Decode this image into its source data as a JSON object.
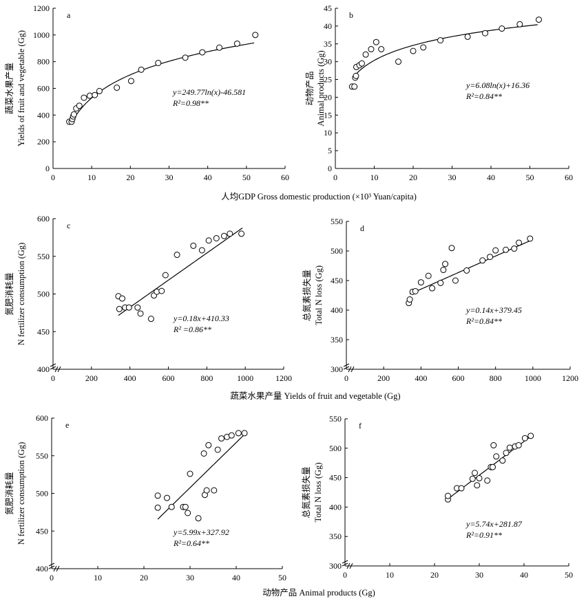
{
  "figure": {
    "row_xlabels": [
      "人均GDP Gross domestic production (×10³ Yuan/capita)",
      "蔬菜水果产量 Yields of fruit and vegetable (Gg)",
      "动物产品 Animal products (Gg)"
    ]
  },
  "chart_data": [
    {
      "panel": "a",
      "type": "scatter",
      "ylabel_cn": "蔬菜水果产量",
      "ylabel_en": "Yields of fruit and vegetable (Gg)",
      "xlim": [
        0,
        60
      ],
      "ylim": [
        0,
        1200
      ],
      "xticks": [
        0,
        10,
        20,
        30,
        40,
        50,
        60
      ],
      "yticks": [
        0,
        200,
        400,
        600,
        800,
        1000,
        1200
      ],
      "points": [
        [
          4.2,
          350
        ],
        [
          4.8,
          350
        ],
        [
          5.0,
          370
        ],
        [
          5.2,
          390
        ],
        [
          5.4,
          405
        ],
        [
          6.0,
          450
        ],
        [
          6.8,
          470
        ],
        [
          8.0,
          530
        ],
        [
          9.5,
          545
        ],
        [
          10.8,
          550
        ],
        [
          12.0,
          580
        ],
        [
          16.5,
          605
        ],
        [
          20.2,
          655
        ],
        [
          22.8,
          740
        ],
        [
          27.2,
          790
        ],
        [
          34.2,
          830
        ],
        [
          38.6,
          870
        ],
        [
          43.0,
          905
        ],
        [
          47.6,
          935
        ],
        [
          52.3,
          1000
        ]
      ],
      "fit": {
        "model": "log",
        "a": 249.77,
        "b": -46.581,
        "xrange": [
          5,
          52
        ]
      },
      "equation": "y=249.77ln(x)-46.581",
      "r2": "R²=0.98**"
    },
    {
      "panel": "b",
      "type": "scatter",
      "ylabel_cn": "动物产品",
      "ylabel_en": "Animal products (Gg)",
      "xlim": [
        0,
        60
      ],
      "ylim": [
        0,
        45
      ],
      "xticks": [
        0,
        10,
        20,
        30,
        40,
        50,
        60
      ],
      "yticks": [
        0,
        5,
        10,
        15,
        20,
        25,
        30,
        35,
        40,
        45
      ],
      "points": [
        [
          4.3,
          23
        ],
        [
          4.9,
          23
        ],
        [
          5.1,
          25.5
        ],
        [
          5.3,
          26
        ],
        [
          5.4,
          28.5
        ],
        [
          6.2,
          29
        ],
        [
          6.8,
          29.5
        ],
        [
          7.8,
          32
        ],
        [
          9.2,
          33.5
        ],
        [
          10.5,
          35.5
        ],
        [
          11.8,
          33.5
        ],
        [
          16.2,
          30
        ],
        [
          20.0,
          33
        ],
        [
          22.6,
          34
        ],
        [
          27.0,
          36
        ],
        [
          34.0,
          37
        ],
        [
          38.5,
          38
        ],
        [
          42.8,
          39.3
        ],
        [
          47.4,
          40.5
        ],
        [
          52.3,
          41.8
        ]
      ],
      "fit": {
        "model": "log",
        "a": 6.08,
        "b": 16.36,
        "xrange": [
          5,
          52
        ]
      },
      "equation": "y=6.08ln(x)+16.36",
      "r2": "R²=0.84**"
    },
    {
      "panel": "c",
      "type": "scatter",
      "ylabel_cn": "氮肥消耗量",
      "ylabel_en": "N fertilizer consumption (Gg)",
      "xlim": [
        0,
        1200
      ],
      "ylim": [
        400,
        600
      ],
      "xticks": [
        0,
        200,
        400,
        600,
        800,
        1000,
        1200
      ],
      "yticks": [
        400,
        450,
        500,
        550,
        600
      ],
      "points": [
        [
          340,
          497
        ],
        [
          345,
          480
        ],
        [
          360,
          494
        ],
        [
          375,
          482
        ],
        [
          395,
          482
        ],
        [
          440,
          482
        ],
        [
          455,
          474
        ],
        [
          510,
          467
        ],
        [
          525,
          498
        ],
        [
          540,
          503
        ],
        [
          565,
          504
        ],
        [
          585,
          525
        ],
        [
          645,
          552
        ],
        [
          730,
          564
        ],
        [
          775,
          558
        ],
        [
          810,
          571
        ],
        [
          850,
          574
        ],
        [
          890,
          577
        ],
        [
          920,
          580
        ],
        [
          980,
          580
        ]
      ],
      "fit": {
        "model": "linear",
        "a": 0.18,
        "b": 410.33,
        "xrange": [
          340,
          985
        ]
      },
      "equation": "y=0.18x+410.33",
      "r2": "R² =0.86**"
    },
    {
      "panel": "d",
      "type": "scatter",
      "ylabel_cn": "总氮素损失量",
      "ylabel_en": "Total N loss (Gg)",
      "xlim": [
        0,
        1200
      ],
      "ylim": [
        300,
        550
      ],
      "xticks": [
        0,
        200,
        400,
        600,
        800,
        1000,
        1200
      ],
      "yticks": [
        300,
        350,
        400,
        450,
        500,
        550
      ],
      "points": [
        [
          335,
          412
        ],
        [
          340,
          418
        ],
        [
          355,
          431
        ],
        [
          370,
          432
        ],
        [
          400,
          447
        ],
        [
          440,
          458
        ],
        [
          460,
          437
        ],
        [
          505,
          446
        ],
        [
          520,
          468
        ],
        [
          530,
          478
        ],
        [
          565,
          505
        ],
        [
          585,
          450
        ],
        [
          645,
          467
        ],
        [
          730,
          484
        ],
        [
          770,
          490
        ],
        [
          800,
          501
        ],
        [
          855,
          502
        ],
        [
          900,
          504
        ],
        [
          925,
          514
        ],
        [
          985,
          521
        ]
      ],
      "fit": {
        "model": "linear",
        "a": 0.14,
        "b": 379.45,
        "xrange": [
          340,
          985
        ]
      },
      "equation": "y=0.14x+379.45",
      "r2": "R²=0.84**"
    },
    {
      "panel": "e",
      "type": "scatter",
      "ylabel_cn": "氮肥消耗量",
      "ylabel_en": "N fertilizer consumption (Gg)",
      "xlim": [
        0,
        50
      ],
      "ylim": [
        400,
        600
      ],
      "xticks": [
        0,
        10,
        20,
        30,
        40,
        50
      ],
      "yticks": [
        400,
        450,
        500,
        550,
        600
      ],
      "points": [
        [
          23,
          497
        ],
        [
          23,
          481
        ],
        [
          25,
          494
        ],
        [
          26,
          482
        ],
        [
          28.5,
          482
        ],
        [
          29,
          482
        ],
        [
          29.5,
          474
        ],
        [
          30,
          526
        ],
        [
          31.8,
          467
        ],
        [
          33,
          553
        ],
        [
          33.2,
          498
        ],
        [
          33.6,
          504
        ],
        [
          34,
          564
        ],
        [
          35.2,
          504
        ],
        [
          36,
          558
        ],
        [
          36.8,
          573
        ],
        [
          38,
          575
        ],
        [
          39,
          577
        ],
        [
          40.5,
          580
        ],
        [
          41.8,
          580
        ]
      ],
      "fit": {
        "model": "linear",
        "a": 5.99,
        "b": 327.92,
        "xrange": [
          23,
          42
        ]
      },
      "equation": "y=5.99x+327.92",
      "r2": "R²=0.64**"
    },
    {
      "panel": "f",
      "type": "scatter",
      "ylabel_cn": "总氮素损失量",
      "ylabel_en": "Total N loss (Gg)",
      "xlim": [
        0,
        50
      ],
      "ylim": [
        300,
        550
      ],
      "xticks": [
        0,
        10,
        20,
        30,
        40,
        50
      ],
      "yticks": [
        300,
        350,
        400,
        450,
        500,
        550
      ],
      "points": [
        [
          23,
          413
        ],
        [
          23,
          419
        ],
        [
          25,
          432
        ],
        [
          26,
          432
        ],
        [
          28.5,
          448
        ],
        [
          29,
          458
        ],
        [
          29.5,
          437
        ],
        [
          30,
          449
        ],
        [
          31.8,
          445
        ],
        [
          32.6,
          468
        ],
        [
          33,
          468
        ],
        [
          33.2,
          505
        ],
        [
          33.8,
          486
        ],
        [
          35.2,
          479
        ],
        [
          36,
          492
        ],
        [
          36.8,
          501
        ],
        [
          38,
          503
        ],
        [
          38.8,
          505
        ],
        [
          40.2,
          517
        ],
        [
          41.5,
          521
        ]
      ],
      "fit": {
        "model": "linear",
        "a": 5.74,
        "b": 281.87,
        "xrange": [
          23,
          41.5
        ]
      },
      "equation": "y=5.74x+281.87",
      "r2": "R²=0.91**"
    }
  ]
}
